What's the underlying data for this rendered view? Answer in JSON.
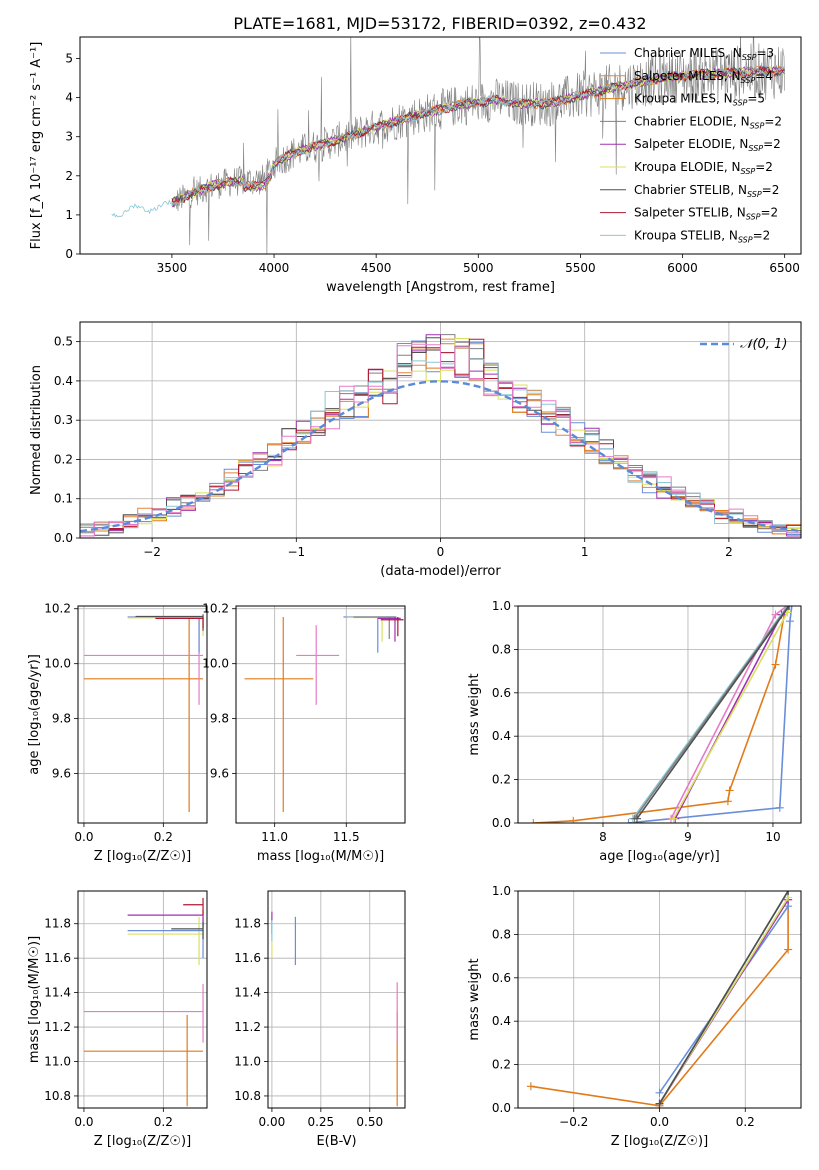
{
  "title": "PLATE=1681, MJD=53172, FIBERID=0392, z=0.432",
  "colors": {
    "chabrier_miles": "#6a8fd8",
    "salpeter_miles": "#e8843c",
    "kroupa_miles": "#e07b1a",
    "chabrier_elodie": "#808080",
    "salpeter_elodie": "#a030b0",
    "kroupa_elodie": "#d8e060",
    "chabrier_stelib": "#505050",
    "salpeter_stelib": "#b01830",
    "kroupa_stelib": "#8ac8d8",
    "pink": "#e87ac8",
    "gaussian": "#5b8ad8"
  },
  "chart_data": [
    {
      "id": "spectrum",
      "type": "line",
      "xlabel": "wavelength [Angstrom, rest frame]",
      "ylabel": "Flux [f_λ 10⁻¹⁷ erg cm⁻² s⁻¹ A⁻¹]",
      "xlim": [
        3050,
        6580
      ],
      "ylim": [
        0,
        5.55
      ],
      "xticks": [
        3500,
        4000,
        4500,
        5000,
        5500,
        6000,
        6500
      ],
      "yticks": [
        0,
        1,
        2,
        3,
        4,
        5
      ],
      "grid": false,
      "legend_position": "top-right",
      "series": [
        {
          "name": "Chabrier MILES, N",
          "sub": "SSP",
          "suffix": "=3",
          "color": "#6a8fd8",
          "lw": 1
        },
        {
          "name": "Salpeter MILES, N",
          "sub": "SSP",
          "suffix": "=4",
          "color": "#e8843c",
          "lw": 1
        },
        {
          "name": "Kroupa MILES, N",
          "sub": "SSP",
          "suffix": "=5",
          "color": "#e07b1a",
          "lw": 1
        },
        {
          "name": "Chabrier ELODIE, N",
          "sub": "SSP",
          "suffix": "=2",
          "color": "#808080",
          "lw": 1
        },
        {
          "name": "Salpeter ELODIE, N",
          "sub": "SSP",
          "suffix": "=2",
          "color": "#a030b0",
          "lw": 1
        },
        {
          "name": "Kroupa ELODIE, N",
          "sub": "SSP",
          "suffix": "=2",
          "color": "#d8e060",
          "lw": 1
        },
        {
          "name": "Chabrier STELIB, N",
          "sub": "SSP",
          "suffix": "=2",
          "color": "#505050",
          "lw": 1
        },
        {
          "name": "Salpeter STELIB, N",
          "sub": "SSP",
          "suffix": "=2",
          "color": "#b01830",
          "lw": 1
        },
        {
          "name": "Kroupa STELIB, N",
          "sub": "SSP",
          "suffix": "=2",
          "color": "#8ac8d8",
          "lw": 1
        }
      ],
      "continuum": [
        [
          3200,
          0.0
        ],
        [
          3205,
          1.0
        ],
        [
          3300,
          1.15
        ],
        [
          3450,
          1.2
        ],
        [
          3500,
          1.3
        ],
        [
          3600,
          1.55
        ],
        [
          3700,
          1.75
        ],
        [
          3800,
          1.85
        ],
        [
          3950,
          1.9
        ],
        [
          4000,
          2.3
        ],
        [
          4100,
          2.6
        ],
        [
          4300,
          2.9
        ],
        [
          4500,
          3.25
        ],
        [
          4700,
          3.55
        ],
        [
          4900,
          3.8
        ],
        [
          5100,
          3.95
        ],
        [
          5200,
          3.85
        ],
        [
          5350,
          3.85
        ],
        [
          5500,
          4.05
        ],
        [
          5700,
          4.3
        ],
        [
          5900,
          4.5
        ],
        [
          6100,
          4.6
        ],
        [
          6300,
          4.65
        ],
        [
          6500,
          4.7
        ]
      ]
    },
    {
      "id": "residuals",
      "type": "line",
      "xlabel": "(data-model)/error",
      "ylabel": "Normed distribution",
      "xlim": [
        -2.5,
        2.5
      ],
      "ylim": [
        0,
        0.55
      ],
      "xticks": [
        -2,
        -1,
        0,
        1,
        2
      ],
      "xtick_labels": [
        "−2",
        "−1",
        "0",
        "1",
        "2"
      ],
      "yticks": [
        0,
        0.1,
        0.2,
        0.3,
        0.4,
        0.5
      ],
      "ytick_labels": [
        "0.0",
        "0.1",
        "0.2",
        "0.3",
        "0.4",
        "0.5"
      ],
      "grid": true,
      "legend_position": "top-right",
      "legend": "𝒩(0, 1)",
      "gaussian": {
        "mean": 0,
        "sigma": 1
      },
      "bin_width": 0.1,
      "histogram_colors": [
        "#6a8fd8",
        "#e8843c",
        "#e07b1a",
        "#808080",
        "#a030b0",
        "#d8e060",
        "#505050",
        "#b01830",
        "#8ac8d8",
        "#e87ac8"
      ]
    },
    {
      "id": "age_vs_Z",
      "type": "scatter",
      "xlabel": "Z [log₁₀(Z/Z☉)]",
      "ylabel": "age  [log₁₀(age/yr)]",
      "xlim": [
        -0.015,
        0.31
      ],
      "ylim": [
        9.42,
        10.21
      ],
      "xticks": [
        0.0,
        0.2
      ],
      "xtick_labels": [
        "0.0",
        "0.2"
      ],
      "yticks": [
        9.6,
        9.8,
        10.0,
        10.2
      ],
      "ytick_labels": [
        "9.6",
        "9.8",
        "10.0",
        "10.2"
      ],
      "grid": true,
      "errorbars": [
        {
          "x": 0.265,
          "xlo": 0.0,
          "xhi": 0.3,
          "y": 9.945,
          "ylo": 9.46,
          "yhi": 10.17,
          "color": "#e07b1a"
        },
        {
          "x": 0.29,
          "xlo": 0.0,
          "xhi": 0.3,
          "y": 10.03,
          "ylo": 9.85,
          "yhi": 10.17,
          "color": "#e87ac8"
        },
        {
          "x": 0.29,
          "xlo": 0.11,
          "xhi": 0.3,
          "y": 10.17,
          "ylo": 10.04,
          "yhi": 10.17,
          "color": "#6a8fd8"
        },
        {
          "x": 0.3,
          "xlo": 0.11,
          "xhi": 0.3,
          "y": 10.167,
          "ylo": 10.1,
          "yhi": 10.17,
          "color": "#d8e060"
        },
        {
          "x": 0.3,
          "xlo": 0.13,
          "xhi": 0.3,
          "y": 10.172,
          "ylo": 10.12,
          "yhi": 10.18,
          "color": "#505050"
        },
        {
          "x": 0.3,
          "xlo": 0.18,
          "xhi": 0.3,
          "y": 10.165,
          "ylo": 10.13,
          "yhi": 10.17,
          "color": "#b01830"
        }
      ]
    },
    {
      "id": "age_vs_mass",
      "type": "scatter",
      "xlabel": "mass [log₁₀(M/M☉)]",
      "ylabel": "",
      "xlim": [
        10.73,
        11.91
      ],
      "ylim": [
        9.42,
        10.21
      ],
      "xticks": [
        11.0,
        11.5
      ],
      "xtick_labels": [
        "11.0",
        "11.5"
      ],
      "yticks": [
        9.6,
        9.8,
        10.0,
        10.2
      ],
      "ytick_labels": [
        "9.6",
        "9.8",
        "10.0",
        "10.2"
      ],
      "grid": true,
      "errorbars": [
        {
          "x": 11.06,
          "xlo": 10.79,
          "xhi": 11.27,
          "y": 9.945,
          "ylo": 9.46,
          "yhi": 10.17,
          "color": "#e07b1a"
        },
        {
          "x": 11.29,
          "xlo": 11.15,
          "xhi": 11.45,
          "y": 10.03,
          "ylo": 9.85,
          "yhi": 10.14,
          "color": "#e87ac8"
        },
        {
          "x": 11.72,
          "xlo": 11.48,
          "xhi": 11.84,
          "y": 10.17,
          "ylo": 10.04,
          "yhi": 10.17,
          "color": "#6a8fd8"
        },
        {
          "x": 11.75,
          "xlo": 11.5,
          "xhi": 11.82,
          "y": 10.168,
          "ylo": 10.08,
          "yhi": 10.17,
          "color": "#d8e060"
        },
        {
          "x": 11.8,
          "xlo": 11.55,
          "xhi": 11.85,
          "y": 10.17,
          "ylo": 10.09,
          "yhi": 10.17,
          "color": "#808080"
        },
        {
          "x": 11.84,
          "xlo": 11.72,
          "xhi": 11.88,
          "y": 10.165,
          "ylo": 10.08,
          "yhi": 10.17,
          "color": "#a030b0"
        },
        {
          "x": 11.86,
          "xlo": 11.74,
          "xhi": 11.9,
          "y": 10.16,
          "ylo": 10.1,
          "yhi": 10.17,
          "color": "#b01830"
        }
      ]
    },
    {
      "id": "weight_vs_age",
      "type": "line",
      "xlabel": "age  [log₁₀(age/yr)]",
      "ylabel": "mass weight",
      "xlim": [
        7.0,
        10.33
      ],
      "ylim": [
        0,
        1.0
      ],
      "xticks": [
        8,
        9,
        10
      ],
      "xtick_labels": [
        "8",
        "9",
        "10"
      ],
      "yticks": [
        0,
        0.2,
        0.4,
        0.6,
        0.8,
        1.0
      ],
      "ytick_labels": [
        "0.0",
        "0.2",
        "0.4",
        "0.6",
        "0.8",
        "1.0"
      ],
      "grid": true,
      "series": [
        {
          "color": "#e07b1a",
          "points": [
            [
              7.18,
              0.0
            ],
            [
              7.65,
              0.01
            ],
            [
              9.47,
              0.1
            ],
            [
              9.49,
              0.15
            ],
            [
              10.03,
              0.73
            ],
            [
              10.15,
              1.0
            ]
          ]
        },
        {
          "color": "#6a8fd8",
          "points": [
            [
              8.3,
              0.0
            ],
            [
              10.08,
              0.07
            ],
            [
              10.2,
              0.93
            ],
            [
              10.22,
              1.0
            ]
          ]
        },
        {
          "color": "#e87ac8",
          "points": [
            [
              8.8,
              0.02
            ],
            [
              10.03,
              0.96
            ],
            [
              10.16,
              1.0
            ]
          ]
        },
        {
          "color": "#a030b0",
          "points": [
            [
              8.85,
              0.02
            ],
            [
              10.1,
              0.96
            ],
            [
              10.17,
              1.0
            ]
          ]
        },
        {
          "color": "#d8e060",
          "points": [
            [
              8.83,
              0.02
            ],
            [
              10.17,
              0.97
            ],
            [
              10.19,
              1.0
            ]
          ]
        },
        {
          "color": "#8ac8d8",
          "points": [
            [
              8.35,
              0.02
            ],
            [
              10.17,
              1.0
            ]
          ]
        },
        {
          "color": "#808080",
          "points": [
            [
              8.37,
              0.02
            ],
            [
              10.18,
              1.0
            ]
          ]
        },
        {
          "color": "#505050",
          "points": [
            [
              8.4,
              0.02
            ],
            [
              10.19,
              1.0
            ]
          ]
        }
      ]
    },
    {
      "id": "mass_vs_Z",
      "type": "scatter",
      "xlabel": "Z [log₁₀(Z/Z☉)]",
      "ylabel": "mass [log₁₀(M/M☉)]",
      "xlim": [
        -0.015,
        0.31
      ],
      "ylim": [
        10.73,
        11.99
      ],
      "xticks": [
        0.0,
        0.2
      ],
      "xtick_labels": [
        "0.0",
        "0.2"
      ],
      "yticks": [
        10.8,
        11.0,
        11.2,
        11.4,
        11.6,
        11.8
      ],
      "ytick_labels": [
        "10.8",
        "11.0",
        "11.2",
        "11.4",
        "11.6",
        "11.8"
      ],
      "grid": true,
      "errorbars": [
        {
          "x": 0.26,
          "xlo": 0.0,
          "xhi": 0.3,
          "y": 11.06,
          "ylo": 10.74,
          "yhi": 11.27,
          "color": "#e07b1a"
        },
        {
          "x": 0.3,
          "xlo": 0.0,
          "xhi": 0.3,
          "y": 11.29,
          "ylo": 11.11,
          "yhi": 11.45,
          "color": "#e87ac8"
        },
        {
          "x": 0.29,
          "xlo": 0.11,
          "xhi": 0.3,
          "y": 11.74,
          "ylo": 11.56,
          "yhi": 11.84,
          "color": "#d8e060"
        },
        {
          "x": 0.3,
          "xlo": 0.11,
          "xhi": 0.3,
          "y": 11.76,
          "ylo": 11.6,
          "yhi": 11.84,
          "color": "#6a8fd8"
        },
        {
          "x": 0.3,
          "xlo": 0.11,
          "xhi": 0.3,
          "y": 11.85,
          "ylo": 11.78,
          "yhi": 11.88,
          "color": "#a030b0"
        },
        {
          "x": 0.3,
          "xlo": 0.25,
          "xhi": 0.3,
          "y": 11.91,
          "ylo": 11.85,
          "yhi": 11.95,
          "color": "#b01830"
        },
        {
          "x": 0.3,
          "xlo": 0.22,
          "xhi": 0.3,
          "y": 11.77,
          "ylo": 11.71,
          "yhi": 11.81,
          "color": "#505050"
        }
      ]
    },
    {
      "id": "mass_vs_ebv",
      "type": "scatter",
      "xlabel": "E(B-V)",
      "ylabel": "",
      "xlim": [
        -0.02,
        0.68
      ],
      "ylim": [
        10.73,
        11.99
      ],
      "xticks": [
        0.0,
        0.25,
        0.5
      ],
      "xtick_labels": [
        "0.00",
        "0.25",
        "0.50"
      ],
      "yticks": [
        10.8,
        11.0,
        11.2,
        11.4,
        11.6,
        11.8
      ],
      "ytick_labels": [
        "10.8",
        "11.0",
        "11.2",
        "11.4",
        "11.6",
        "11.8"
      ],
      "grid": true,
      "errorbars": [
        {
          "x": 0.12,
          "xlo": 0.12,
          "xhi": 0.12,
          "y": 11.74,
          "ylo": 11.56,
          "yhi": 11.84,
          "color": "#6a8fd8"
        },
        {
          "x": 0.0,
          "xlo": 0.0,
          "xhi": 0.0,
          "y": 11.74,
          "ylo": 11.6,
          "yhi": 11.85,
          "color": "#d8e060"
        },
        {
          "x": 0.0,
          "xlo": 0.0,
          "xhi": 0.0,
          "y": 11.8,
          "ylo": 11.74,
          "yhi": 11.87,
          "color": "#a030b0"
        },
        {
          "x": 0.0,
          "xlo": 0.0,
          "xhi": 0.0,
          "y": 11.76,
          "ylo": 11.7,
          "yhi": 11.82,
          "color": "#8ac8d8"
        },
        {
          "x": 0.64,
          "xlo": 0.64,
          "xhi": 0.64,
          "y": 11.1,
          "ylo": 10.74,
          "yhi": 11.29,
          "color": "#e07b1a"
        },
        {
          "x": 0.64,
          "xlo": 0.64,
          "xhi": 0.64,
          "y": 11.3,
          "ylo": 11.11,
          "yhi": 11.46,
          "color": "#e87ac8"
        }
      ]
    },
    {
      "id": "weight_vs_Z",
      "type": "line",
      "xlabel": "Z [log₁₀(Z/Z☉)]",
      "ylabel": "mass weight",
      "xlim": [
        -0.33,
        0.33
      ],
      "ylim": [
        0,
        1.0
      ],
      "xticks": [
        -0.2,
        0.0,
        0.2
      ],
      "xtick_labels": [
        "−0.2",
        "0.0",
        "0.2"
      ],
      "yticks": [
        0,
        0.2,
        0.4,
        0.6,
        0.8,
        1.0
      ],
      "ytick_labels": [
        "0.0",
        "0.2",
        "0.4",
        "0.6",
        "0.8",
        "1.0"
      ],
      "grid": true,
      "series": [
        {
          "color": "#e07b1a",
          "points": [
            [
              -0.3,
              0.1
            ],
            [
              0.0,
              0.01
            ],
            [
              0.3,
              0.73
            ],
            [
              0.3,
              1.0
            ]
          ]
        },
        {
          "color": "#6a8fd8",
          "points": [
            [
              0.0,
              0.07
            ],
            [
              0.3,
              0.93
            ],
            [
              0.3,
              1.0
            ]
          ]
        },
        {
          "color": "#e87ac8",
          "points": [
            [
              0.0,
              0.02
            ],
            [
              0.3,
              0.96
            ],
            [
              0.3,
              1.0
            ]
          ]
        },
        {
          "color": "#a030b0",
          "points": [
            [
              0.0,
              0.02
            ],
            [
              0.3,
              0.96
            ],
            [
              0.3,
              1.0
            ]
          ]
        },
        {
          "color": "#d8e060",
          "points": [
            [
              0.0,
              0.02
            ],
            [
              0.3,
              0.97
            ],
            [
              0.3,
              1.0
            ]
          ]
        },
        {
          "color": "#8ac8d8",
          "points": [
            [
              0.0,
              0.02
            ],
            [
              0.3,
              1.0
            ]
          ]
        },
        {
          "color": "#808080",
          "points": [
            [
              0.0,
              0.02
            ],
            [
              0.3,
              1.0
            ]
          ]
        },
        {
          "color": "#505050",
          "points": [
            [
              0.0,
              0.02
            ],
            [
              0.3,
              1.0
            ]
          ]
        }
      ]
    }
  ]
}
